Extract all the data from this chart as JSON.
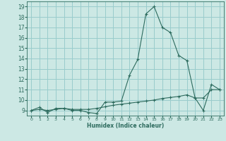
{
  "title": "",
  "xlabel": "Humidex (Indice chaleur)",
  "ylabel": "",
  "bg_color": "#cce8e4",
  "grid_color": "#99cccc",
  "line_color": "#2d6b5e",
  "xlim": [
    -0.5,
    23.5
  ],
  "ylim": [
    8.5,
    19.5
  ],
  "xticks": [
    0,
    1,
    2,
    3,
    4,
    5,
    6,
    7,
    8,
    9,
    10,
    11,
    12,
    13,
    14,
    15,
    16,
    17,
    18,
    19,
    20,
    21,
    22,
    23
  ],
  "yticks": [
    9,
    10,
    11,
    12,
    13,
    14,
    15,
    16,
    17,
    18,
    19
  ],
  "line1_x": [
    0,
    1,
    2,
    3,
    4,
    5,
    6,
    7,
    8,
    9,
    10,
    11,
    12,
    13,
    14,
    15,
    16,
    17,
    18,
    19,
    20,
    21,
    22,
    23
  ],
  "line1_y": [
    9.0,
    9.3,
    8.8,
    9.2,
    9.2,
    9.0,
    9.0,
    8.8,
    8.7,
    9.8,
    9.8,
    9.9,
    12.4,
    13.9,
    18.3,
    19.0,
    17.0,
    16.5,
    14.3,
    13.8,
    10.2,
    9.0,
    11.5,
    11.0
  ],
  "line2_x": [
    0,
    1,
    2,
    3,
    4,
    5,
    6,
    7,
    8,
    9,
    10,
    11,
    12,
    13,
    14,
    15,
    16,
    17,
    18,
    19,
    20,
    21,
    22,
    23
  ],
  "line2_y": [
    9.0,
    9.1,
    9.0,
    9.1,
    9.2,
    9.1,
    9.1,
    9.1,
    9.2,
    9.35,
    9.5,
    9.6,
    9.7,
    9.8,
    9.9,
    10.0,
    10.15,
    10.25,
    10.35,
    10.5,
    10.2,
    10.2,
    11.0,
    11.0
  ]
}
